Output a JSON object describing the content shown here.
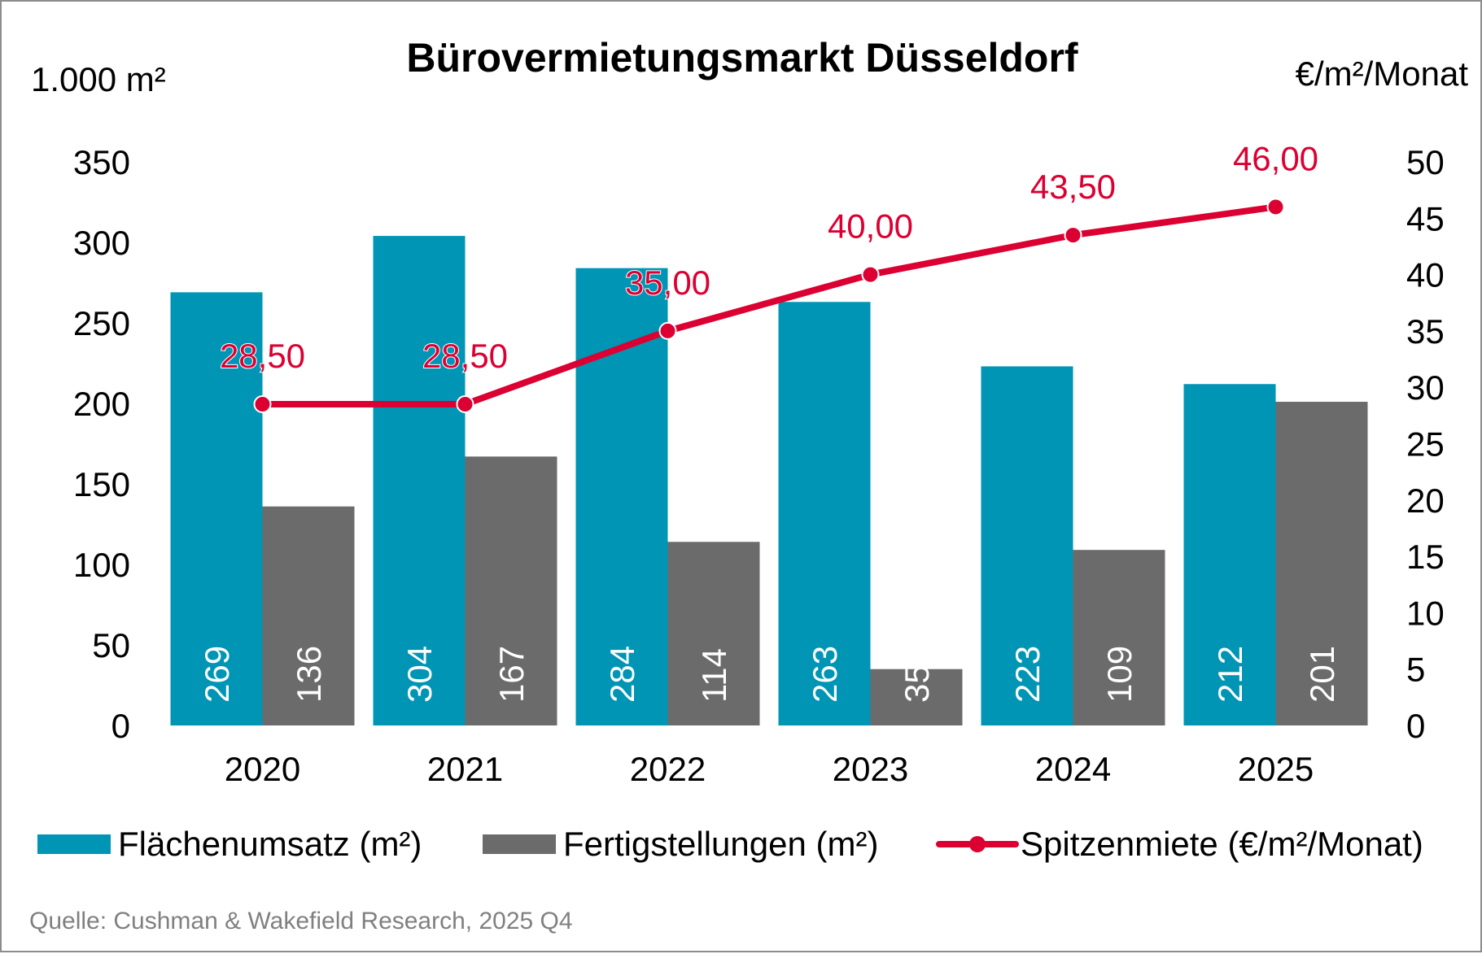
{
  "chart_data": {
    "type": "bar",
    "title": "Bürovermietungsmarkt Düsseldorf",
    "ylabel_left": "1.000 m²",
    "ylabel_right": "€/m²/Monat",
    "categories": [
      "2020",
      "2021",
      "2022",
      "2023",
      "2024",
      "2025"
    ],
    "ylim_left": [
      0,
      350
    ],
    "yticks_left": [
      "0",
      "50",
      "100",
      "150",
      "200",
      "250",
      "300",
      "350"
    ],
    "ylim_right": [
      0,
      50
    ],
    "yticks_right": [
      "0",
      "5",
      "10",
      "15",
      "20",
      "25",
      "30",
      "35",
      "40",
      "45",
      "50"
    ],
    "grid": false,
    "legend_position": "bottom",
    "series": [
      {
        "name": "Flächenumsatz (m²)",
        "type": "bar",
        "axis": "left",
        "color": "#0095b4",
        "values": [
          269,
          304,
          284,
          263,
          223,
          212
        ],
        "labels": [
          "269",
          "304",
          "284",
          "263",
          "223",
          "212"
        ]
      },
      {
        "name": "Fertigstellungen (m²)",
        "type": "bar",
        "axis": "left",
        "color": "#6b6b6b",
        "values": [
          136,
          167,
          114,
          35,
          109,
          201
        ],
        "labels": [
          "136",
          "167",
          "114",
          "35",
          "109",
          "201"
        ]
      },
      {
        "name": "Spitzenmiete (€/m²/Monat)",
        "type": "line",
        "axis": "right",
        "color": "#dc0032",
        "values": [
          28.5,
          28.5,
          35.0,
          40.0,
          43.5,
          46.0
        ],
        "labels": [
          "28,50",
          "28,50",
          "35,00",
          "40,00",
          "43,50",
          "46,00"
        ]
      }
    ],
    "source": "Quelle: Cushman & Wakefield Research, 2025 Q4"
  }
}
